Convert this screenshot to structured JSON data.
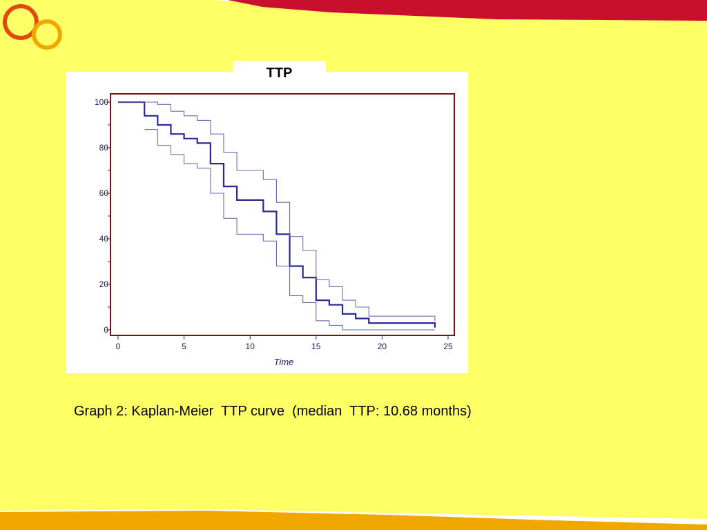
{
  "slide": {
    "background": "#ffff66",
    "accent_red": "#c8102e",
    "accent_orange": "#f0a800",
    "logo_icon": "two-interlocking-rings-icon",
    "caption": "Graph 2: Kaplan-Meier  TTP curve  (median  TTP: 10.68 months)"
  },
  "chart_data": {
    "type": "line",
    "step": true,
    "title": "TTP",
    "xlabel": "Time",
    "ylabel": "",
    "xlim": [
      0,
      25
    ],
    "ylim": [
      0,
      100
    ],
    "xticks": [
      0,
      5,
      10,
      15,
      20,
      25
    ],
    "yticks": [
      0,
      20,
      40,
      60,
      80,
      100
    ],
    "grid": false,
    "legend": "none",
    "series": [
      {
        "role": "estimate",
        "color": "#2a2a8c",
        "x": [
          0,
          2,
          3,
          4,
          5,
          6,
          7,
          8,
          9,
          11,
          12,
          13,
          14,
          15,
          16,
          17,
          18,
          19,
          24
        ],
        "y": [
          100,
          94,
          90,
          86,
          84,
          82,
          73,
          63,
          57,
          52,
          42,
          28,
          23,
          13,
          11,
          7,
          5,
          3,
          1
        ]
      },
      {
        "role": "upper-confidence-limit",
        "color": "#6b6bb0",
        "x": [
          0,
          3,
          4,
          5,
          6,
          7,
          8,
          9,
          11,
          12,
          13,
          14,
          15,
          16,
          17,
          18,
          19,
          24
        ],
        "y": [
          100,
          99,
          96,
          94,
          92,
          86,
          78,
          70,
          66,
          56,
          41,
          35,
          22,
          19,
          13,
          10,
          6,
          4
        ]
      },
      {
        "role": "lower-confidence-limit",
        "color": "#6b6bb0",
        "x": [
          2,
          3,
          4,
          5,
          6,
          7,
          8,
          9,
          11,
          12,
          13,
          14,
          15,
          16,
          17,
          24
        ],
        "y": [
          88,
          81,
          77,
          73,
          71,
          60,
          49,
          42,
          39,
          28,
          15,
          12,
          4,
          2,
          0,
          0
        ]
      }
    ]
  }
}
